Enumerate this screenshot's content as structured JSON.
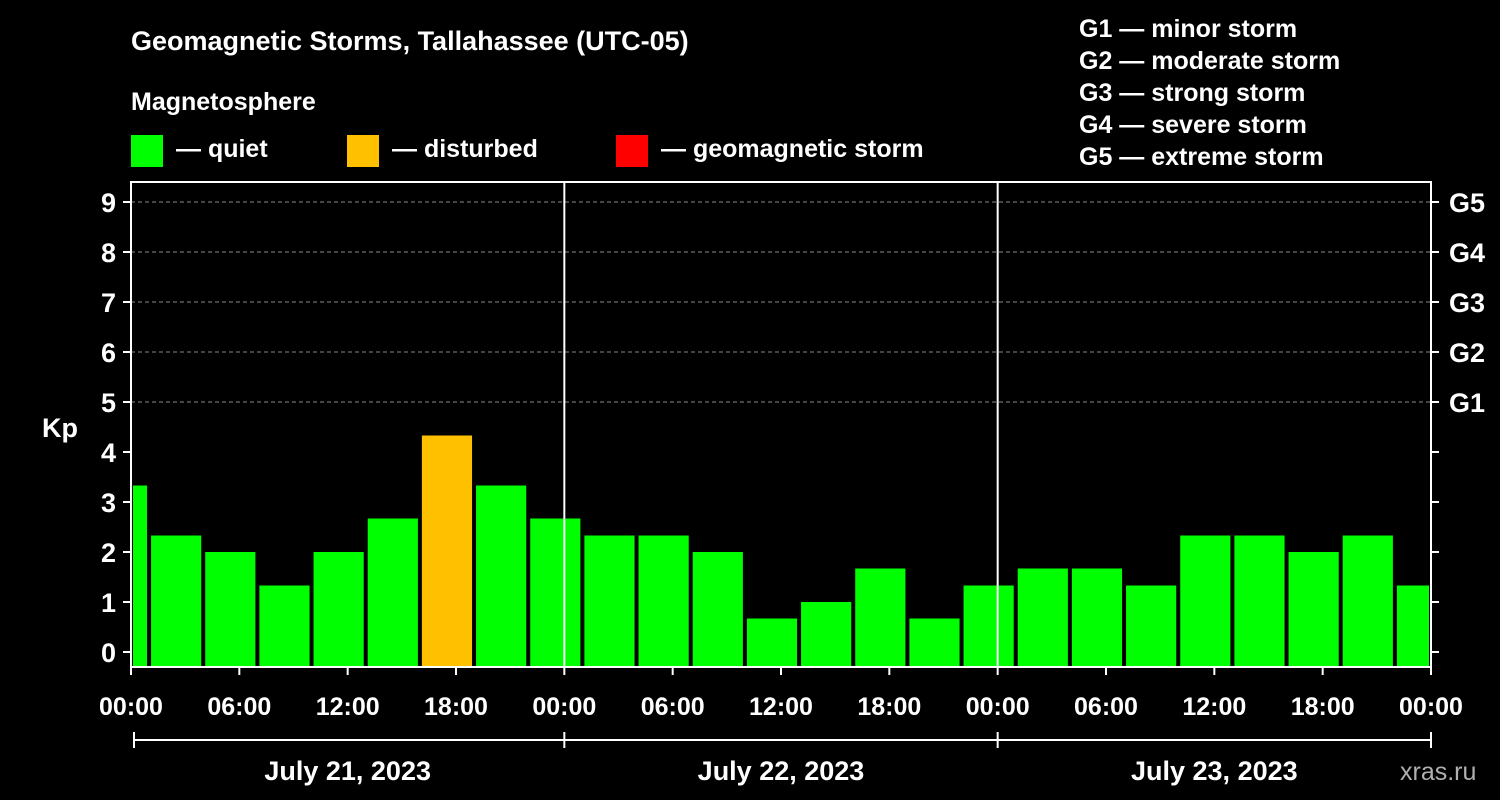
{
  "chart_data": {
    "type": "bar",
    "title": "Geomagnetic Storms, Tallahassee (UTC-05)",
    "legend_title": "Magnetosphere",
    "legend": [
      {
        "label": "— quiet",
        "color": "#00ff00"
      },
      {
        "label": "— disturbed",
        "color": "#ffc000"
      },
      {
        "label": "— geomagnetic storm",
        "color": "#ff0000"
      }
    ],
    "storm_scale": [
      "G1 — minor storm",
      "G2 — moderate storm",
      "G3 — strong storm",
      "G4 — severe storm",
      "G5 — extreme storm"
    ],
    "ylabel": "Kp",
    "ylim": [
      -0.3,
      9.4
    ],
    "y_ticks": [
      "0",
      "1",
      "2",
      "3",
      "4",
      "5",
      "6",
      "7",
      "8",
      "9"
    ],
    "right_ticks": [
      {
        "kp": 5,
        "label": "G1"
      },
      {
        "kp": 6,
        "label": "G2"
      },
      {
        "kp": 7,
        "label": "G3"
      },
      {
        "kp": 8,
        "label": "G4"
      },
      {
        "kp": 9,
        "label": "G5"
      }
    ],
    "x_range_hours": [
      0,
      72
    ],
    "x_ticks": [
      "00:00",
      "06:00",
      "12:00",
      "18:00",
      "00:00",
      "06:00",
      "12:00",
      "18:00",
      "00:00",
      "06:00",
      "12:00",
      "18:00",
      "00:00"
    ],
    "days": [
      "July 21, 2023",
      "July 22, 2023",
      "July 23, 2023"
    ],
    "series": [
      {
        "name": "Kp",
        "bars": [
          {
            "start": 0,
            "end": 1,
            "value": 3.33,
            "status": "quiet"
          },
          {
            "start": 1,
            "end": 4,
            "value": 2.33,
            "status": "quiet"
          },
          {
            "start": 4,
            "end": 7,
            "value": 2.0,
            "status": "quiet"
          },
          {
            "start": 7,
            "end": 10,
            "value": 1.33,
            "status": "quiet"
          },
          {
            "start": 10,
            "end": 13,
            "value": 2.0,
            "status": "quiet"
          },
          {
            "start": 13,
            "end": 16,
            "value": 2.67,
            "status": "quiet"
          },
          {
            "start": 16,
            "end": 19,
            "value": 4.33,
            "status": "disturbed"
          },
          {
            "start": 19,
            "end": 22,
            "value": 3.33,
            "status": "quiet"
          },
          {
            "start": 22,
            "end": 25,
            "value": 2.67,
            "status": "quiet"
          },
          {
            "start": 25,
            "end": 28,
            "value": 2.33,
            "status": "quiet"
          },
          {
            "start": 28,
            "end": 31,
            "value": 2.33,
            "status": "quiet"
          },
          {
            "start": 31,
            "end": 34,
            "value": 2.0,
            "status": "quiet"
          },
          {
            "start": 34,
            "end": 37,
            "value": 0.67,
            "status": "quiet"
          },
          {
            "start": 37,
            "end": 40,
            "value": 1.0,
            "status": "quiet"
          },
          {
            "start": 40,
            "end": 43,
            "value": 1.67,
            "status": "quiet"
          },
          {
            "start": 43,
            "end": 46,
            "value": 0.67,
            "status": "quiet"
          },
          {
            "start": 46,
            "end": 49,
            "value": 1.33,
            "status": "quiet"
          },
          {
            "start": 49,
            "end": 52,
            "value": 1.67,
            "status": "quiet"
          },
          {
            "start": 52,
            "end": 55,
            "value": 1.67,
            "status": "quiet"
          },
          {
            "start": 55,
            "end": 58,
            "value": 1.33,
            "status": "quiet"
          },
          {
            "start": 58,
            "end": 61,
            "value": 2.33,
            "status": "quiet"
          },
          {
            "start": 61,
            "end": 64,
            "value": 2.33,
            "status": "quiet"
          },
          {
            "start": 64,
            "end": 67,
            "value": 2.0,
            "status": "quiet"
          },
          {
            "start": 67,
            "end": 70,
            "value": 2.33,
            "status": "quiet"
          },
          {
            "start": 70,
            "end": 72,
            "value": 1.33,
            "status": "quiet"
          }
        ]
      }
    ],
    "watermark": "xras.ru",
    "colors": {
      "quiet": "#00ff00",
      "disturbed": "#ffc000",
      "storm": "#ff0000",
      "background": "#000000",
      "axis": "#ffffff",
      "grid": "#888888"
    }
  }
}
